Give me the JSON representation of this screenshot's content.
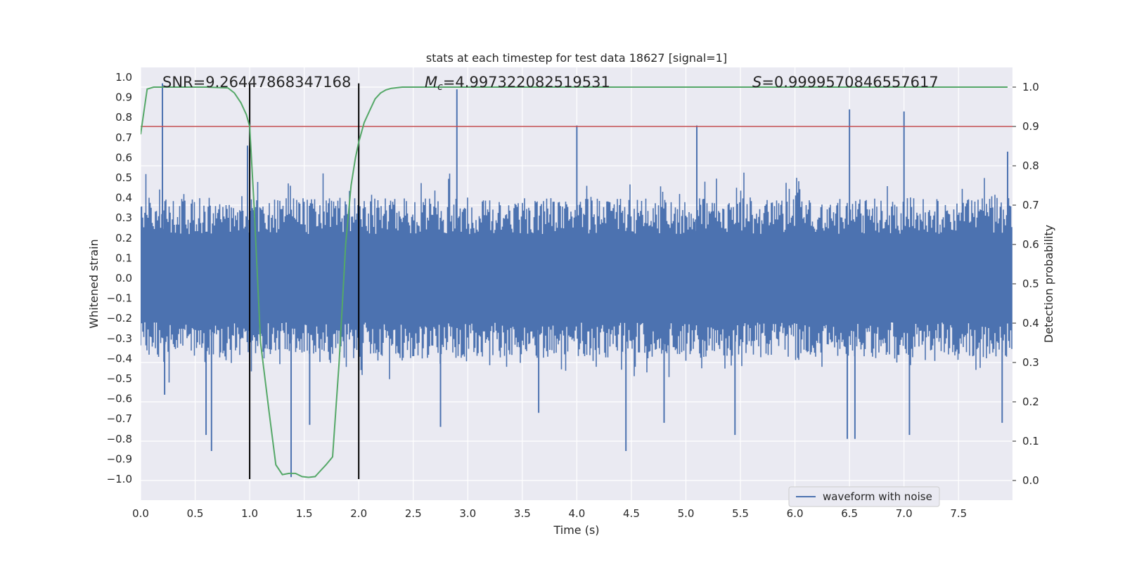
{
  "chart_data": {
    "type": "line",
    "title": "stats at each timestep for test data 18627 [signal=1]",
    "xlabel": "Time (s)",
    "ylabel": "Whitened strain",
    "ylabel_right": "Detection probability",
    "xlim": [
      0.0,
      8.0
    ],
    "ylim": [
      -1.1,
      1.1
    ],
    "ylim_right": [
      -0.05,
      1.05
    ],
    "xticks": [
      "0.0",
      "0.5",
      "1.0",
      "1.5",
      "2.0",
      "2.5",
      "3.0",
      "3.5",
      "4.0",
      "4.5",
      "5.0",
      "5.5",
      "6.0",
      "6.5",
      "7.0",
      "7.5"
    ],
    "yticks": [
      "1.0",
      "0.9",
      "0.8",
      "0.7",
      "0.6",
      "0.5",
      "0.4",
      "0.3",
      "0.2",
      "0.1",
      "0.0",
      "-0.1",
      "-0.2",
      "-0.3",
      "-0.4",
      "-0.5",
      "-0.6",
      "-0.7",
      "-0.8",
      "-0.9",
      "-1.0"
    ],
    "yticks_right": [
      "1.0",
      "0.9",
      "0.8",
      "0.7",
      "0.6",
      "0.5",
      "0.4",
      "0.3",
      "0.2",
      "0.1",
      "0.0"
    ],
    "grid": true,
    "legend_position": "bottom-right",
    "annotations": {
      "snr": "SNR=9.26447868347168",
      "mc_symbol": "M",
      "mc_sub": "c",
      "mc_value": "=4.997322082519531",
      "s_symbol": "S",
      "s_value": "=0.9999570846557617"
    },
    "threshold": {
      "value": 0.9,
      "axis": "right",
      "color": "#c44e52"
    },
    "markers": [
      1.0,
      2.0
    ],
    "series": [
      {
        "name": "waveform with noise",
        "axis": "left",
        "color": "#4c72b0",
        "style": "noise",
        "envelope_peaks": [
          [
            0.2,
            0.97
          ],
          [
            0.22,
            -0.58
          ],
          [
            0.6,
            -0.78
          ],
          [
            0.65,
            -0.86
          ],
          [
            0.98,
            0.66
          ],
          [
            1.38,
            -0.99
          ],
          [
            1.55,
            -0.73
          ],
          [
            2.9,
            0.94
          ],
          [
            2.75,
            -0.74
          ],
          [
            3.65,
            -0.67
          ],
          [
            4.0,
            0.76
          ],
          [
            4.45,
            -0.86
          ],
          [
            4.8,
            -0.72
          ],
          [
            5.1,
            0.76
          ],
          [
            5.45,
            -0.78
          ],
          [
            6.5,
            0.84
          ],
          [
            6.48,
            -0.8
          ],
          [
            6.55,
            -0.8
          ],
          [
            7.0,
            0.83
          ],
          [
            7.05,
            -0.78
          ],
          [
            7.9,
            -0.72
          ],
          [
            7.95,
            0.63
          ]
        ]
      },
      {
        "name": "detection probability",
        "axis": "right",
        "color": "#55a868",
        "x": [
          0.0,
          0.06,
          0.12,
          0.2,
          0.4,
          0.6,
          0.8,
          0.86,
          0.92,
          0.97,
          1.0,
          1.04,
          1.1,
          1.18,
          1.24,
          1.3,
          1.36,
          1.42,
          1.48,
          1.54,
          1.6,
          1.65,
          1.7,
          1.76,
          1.82,
          1.88,
          1.93,
          1.97,
          2.0,
          2.05,
          2.1,
          2.15,
          2.2,
          2.25,
          2.3,
          2.4,
          2.6,
          3.0,
          4.0,
          5.0,
          6.0,
          7.0,
          7.95
        ],
        "values": [
          0.88,
          0.995,
          1.0,
          1.0,
          1.0,
          1.0,
          0.998,
          0.985,
          0.96,
          0.93,
          0.9,
          0.7,
          0.35,
          0.17,
          0.04,
          0.015,
          0.018,
          0.018,
          0.01,
          0.008,
          0.01,
          0.025,
          0.04,
          0.06,
          0.3,
          0.6,
          0.75,
          0.82,
          0.86,
          0.91,
          0.94,
          0.97,
          0.985,
          0.993,
          0.997,
          1.0,
          1.0,
          1.0,
          1.0,
          1.0,
          1.0,
          1.0,
          1.0
        ]
      }
    ]
  }
}
